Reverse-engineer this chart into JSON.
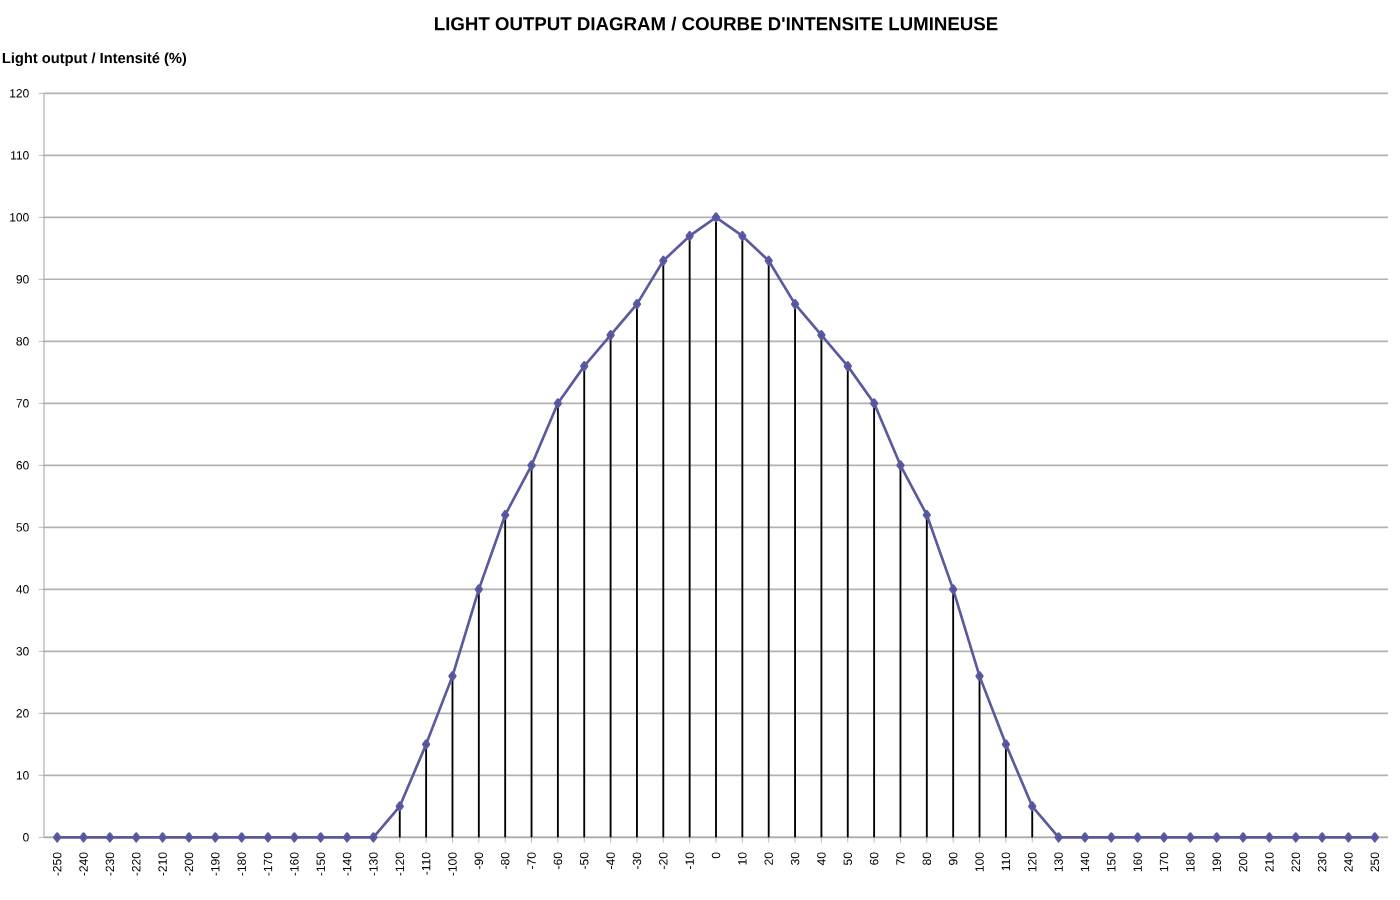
{
  "chart_data": {
    "type": "line",
    "title": "LIGHT OUTPUT DIAGRAM / COURBE D'INTENSITE LUMINEUSE",
    "ylabel": "Light output / Intensité (%)",
    "categories": [
      "-250",
      "-240",
      "-230",
      "-220",
      "-210",
      "-200",
      "-190",
      "-180",
      "-170",
      "-160",
      "-150",
      "-140",
      "-130",
      "-120",
      "-110",
      "-100",
      "-90",
      "-80",
      "-70",
      "-60",
      "-50",
      "-40",
      "-30",
      "-20",
      "-10",
      "0",
      "10",
      "20",
      "30",
      "40",
      "50",
      "60",
      "70",
      "80",
      "90",
      "100",
      "110",
      "120",
      "130",
      "140",
      "150",
      "160",
      "170",
      "180",
      "190",
      "200",
      "210",
      "220",
      "230",
      "240",
      "250"
    ],
    "series": [
      {
        "type": "bar",
        "color": "#000000",
        "values": [
          0,
          0,
          0,
          0,
          0,
          0,
          0,
          0,
          0,
          0,
          0,
          0,
          0,
          5,
          15,
          26,
          40,
          52,
          60,
          70,
          76,
          81,
          86,
          93,
          97,
          100,
          97,
          93,
          86,
          81,
          76,
          70,
          60,
          52,
          40,
          26,
          15,
          5,
          0,
          0,
          0,
          0,
          0,
          0,
          0,
          0,
          0,
          0,
          0,
          0,
          0
        ]
      },
      {
        "color": "#5a5a9e",
        "values": [
          0,
          0,
          0,
          0,
          0,
          0,
          0,
          0,
          0,
          0,
          0,
          0,
          0,
          5,
          15,
          26,
          40,
          52,
          60,
          70,
          76,
          81,
          86,
          93,
          97,
          100,
          97,
          93,
          86,
          81,
          76,
          70,
          60,
          52,
          40,
          26,
          15,
          5,
          0,
          0,
          0,
          0,
          0,
          0,
          0,
          0,
          0,
          0,
          0,
          0,
          0
        ]
      }
    ],
    "ylim": [
      0,
      120
    ],
    "yticks": [
      0,
      10,
      20,
      30,
      40,
      50,
      60,
      70,
      80,
      90,
      100,
      110,
      120
    ],
    "grid": "y",
    "marker": "diamond",
    "line_style": "solid"
  }
}
